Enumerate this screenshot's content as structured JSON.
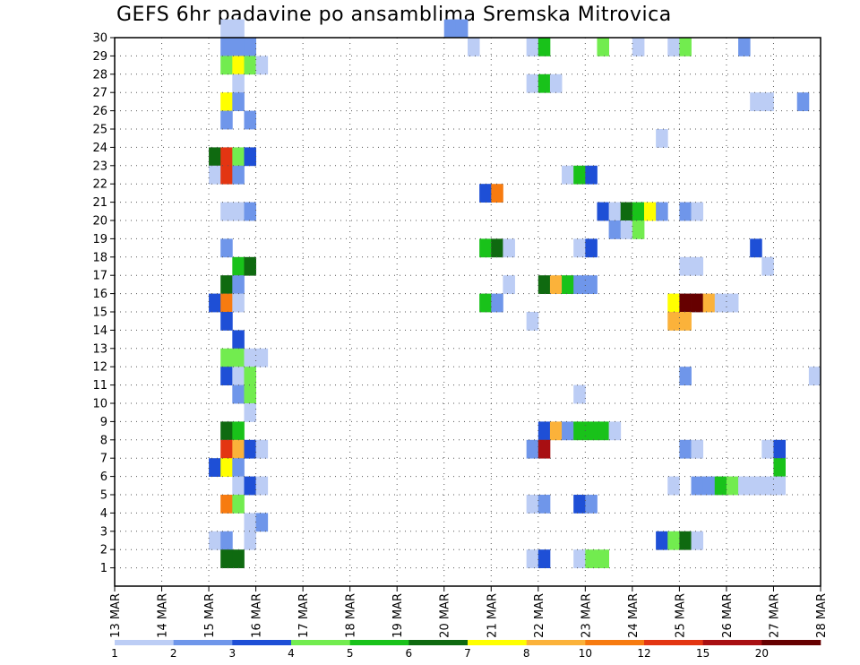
{
  "title": "GEFS 6hr padavine po ansamblima Sremska Mitrovica",
  "chart_data": {
    "type": "heatmap",
    "title": "GEFS 6hr padavine po ansamblima Sremska Mitrovica",
    "x_tick_labels": [
      "13 MAR",
      "14 MAR",
      "15 MAR",
      "16 MAR",
      "17 MAR",
      "18 MAR",
      "19 MAR",
      "20 MAR",
      "21 MAR",
      "22 MAR",
      "23 MAR",
      "24 MAR",
      "25 MAR",
      "26 MAR",
      "27 MAR",
      "28 MAR"
    ],
    "y_tick_labels": [
      "1",
      "2",
      "3",
      "4",
      "5",
      "6",
      "7",
      "8",
      "9",
      "10",
      "11",
      "12",
      "13",
      "14",
      "15",
      "16",
      "17",
      "18",
      "19",
      "20",
      "21",
      "22",
      "23",
      "24",
      "25",
      "26",
      "27",
      "28",
      "29",
      "30"
    ],
    "x_range": [
      "13 MAR",
      "28 MAR"
    ],
    "time_step": "6hr",
    "members_range": [
      0,
      30
    ],
    "grid": "dotted",
    "legend": {
      "position": "bottom",
      "colors": [
        "#bccdf5",
        "#6f96ea",
        "#1e4fd6",
        "#72ec4f",
        "#19c21a",
        "#0f6a10",
        "#ffff00",
        "#fbb23a",
        "#f77b10",
        "#e33512",
        "#a80f12",
        "#660000"
      ],
      "labels": [
        "1",
        "2",
        "3",
        "4",
        "5",
        "6",
        "7",
        "8",
        "10",
        "12",
        "15",
        "20"
      ]
    },
    "cells": [
      {
        "member": 30,
        "day": "15 MAR",
        "slot": 1,
        "level": 1
      },
      {
        "member": 30,
        "day": "15 MAR",
        "slot": 2,
        "level": 1
      },
      {
        "member": 30,
        "day": "20 MAR",
        "slot": 0,
        "level": 2
      },
      {
        "member": 30,
        "day": "20 MAR",
        "slot": 1,
        "level": 2
      },
      {
        "member": 29,
        "day": "15 MAR",
        "slot": 1,
        "level": 2
      },
      {
        "member": 29,
        "day": "15 MAR",
        "slot": 2,
        "level": 2
      },
      {
        "member": 29,
        "day": "15 MAR",
        "slot": 3,
        "level": 2
      },
      {
        "member": 29,
        "day": "20 MAR",
        "slot": 2,
        "level": 1
      },
      {
        "member": 29,
        "day": "21 MAR",
        "slot": 3,
        "level": 1
      },
      {
        "member": 29,
        "day": "22 MAR",
        "slot": 0,
        "level": 5
      },
      {
        "member": 29,
        "day": "23 MAR",
        "slot": 1,
        "level": 4
      },
      {
        "member": 29,
        "day": "24 MAR",
        "slot": 0,
        "level": 1
      },
      {
        "member": 29,
        "day": "24 MAR",
        "slot": 3,
        "level": 1
      },
      {
        "member": 29,
        "day": "25 MAR",
        "slot": 0,
        "level": 4
      },
      {
        "member": 29,
        "day": "26 MAR",
        "slot": 1,
        "level": 2
      },
      {
        "member": 28,
        "day": "15 MAR",
        "slot": 1,
        "level": 4
      },
      {
        "member": 28,
        "day": "15 MAR",
        "slot": 2,
        "level": 7
      },
      {
        "member": 28,
        "day": "15 MAR",
        "slot": 3,
        "level": 4
      },
      {
        "member": 28,
        "day": "16 MAR",
        "slot": 0,
        "level": 1
      },
      {
        "member": 27,
        "day": "15 MAR",
        "slot": 2,
        "level": 1
      },
      {
        "member": 27,
        "day": "21 MAR",
        "slot": 3,
        "level": 1
      },
      {
        "member": 27,
        "day": "22 MAR",
        "slot": 0,
        "level": 5
      },
      {
        "member": 27,
        "day": "22 MAR",
        "slot": 1,
        "level": 1
      },
      {
        "member": 26,
        "day": "15 MAR",
        "slot": 1,
        "level": 7
      },
      {
        "member": 26,
        "day": "15 MAR",
        "slot": 2,
        "level": 2
      },
      {
        "member": 26,
        "day": "26 MAR",
        "slot": 2,
        "level": 1
      },
      {
        "member": 26,
        "day": "26 MAR",
        "slot": 3,
        "level": 1
      },
      {
        "member": 26,
        "day": "27 MAR",
        "slot": 2,
        "level": 2
      },
      {
        "member": 25,
        "day": "15 MAR",
        "slot": 1,
        "level": 2
      },
      {
        "member": 25,
        "day": "15 MAR",
        "slot": 3,
        "level": 2
      },
      {
        "member": 24,
        "day": "24 MAR",
        "slot": 2,
        "level": 1
      },
      {
        "member": 23,
        "day": "15 MAR",
        "slot": 0,
        "level": 6
      },
      {
        "member": 23,
        "day": "15 MAR",
        "slot": 1,
        "level": 10
      },
      {
        "member": 23,
        "day": "15 MAR",
        "slot": 2,
        "level": 4
      },
      {
        "member": 23,
        "day": "15 MAR",
        "slot": 3,
        "level": 3
      },
      {
        "member": 22,
        "day": "15 MAR",
        "slot": 0,
        "level": 1
      },
      {
        "member": 22,
        "day": "15 MAR",
        "slot": 1,
        "level": 10
      },
      {
        "member": 22,
        "day": "15 MAR",
        "slot": 2,
        "level": 2
      },
      {
        "member": 22,
        "day": "22 MAR",
        "slot": 2,
        "level": 1
      },
      {
        "member": 22,
        "day": "22 MAR",
        "slot": 3,
        "level": 5
      },
      {
        "member": 22,
        "day": "23 MAR",
        "slot": 0,
        "level": 3
      },
      {
        "member": 21,
        "day": "20 MAR",
        "slot": 3,
        "level": 3
      },
      {
        "member": 21,
        "day": "21 MAR",
        "slot": 0,
        "level": 9
      },
      {
        "member": 20,
        "day": "15 MAR",
        "slot": 1,
        "level": 1
      },
      {
        "member": 20,
        "day": "15 MAR",
        "slot": 2,
        "level": 1
      },
      {
        "member": 20,
        "day": "15 MAR",
        "slot": 3,
        "level": 2
      },
      {
        "member": 20,
        "day": "23 MAR",
        "slot": 1,
        "level": 3
      },
      {
        "member": 20,
        "day": "23 MAR",
        "slot": 2,
        "level": 1
      },
      {
        "member": 20,
        "day": "23 MAR",
        "slot": 3,
        "level": 6
      },
      {
        "member": 20,
        "day": "24 MAR",
        "slot": 0,
        "level": 5
      },
      {
        "member": 20,
        "day": "24 MAR",
        "slot": 1,
        "level": 7
      },
      {
        "member": 20,
        "day": "24 MAR",
        "slot": 2,
        "level": 2
      },
      {
        "member": 20,
        "day": "25 MAR",
        "slot": 0,
        "level": 2
      },
      {
        "member": 20,
        "day": "25 MAR",
        "slot": 1,
        "level": 1
      },
      {
        "member": 19,
        "day": "23 MAR",
        "slot": 2,
        "level": 2
      },
      {
        "member": 19,
        "day": "23 MAR",
        "slot": 3,
        "level": 1
      },
      {
        "member": 19,
        "day": "24 MAR",
        "slot": 0,
        "level": 4
      },
      {
        "member": 18,
        "day": "15 MAR",
        "slot": 1,
        "level": 2
      },
      {
        "member": 18,
        "day": "20 MAR",
        "slot": 3,
        "level": 5
      },
      {
        "member": 18,
        "day": "21 MAR",
        "slot": 0,
        "level": 6
      },
      {
        "member": 18,
        "day": "21 MAR",
        "slot": 1,
        "level": 1
      },
      {
        "member": 18,
        "day": "22 MAR",
        "slot": 3,
        "level": 1
      },
      {
        "member": 18,
        "day": "23 MAR",
        "slot": 0,
        "level": 3
      },
      {
        "member": 18,
        "day": "26 MAR",
        "slot": 2,
        "level": 3
      },
      {
        "member": 17,
        "day": "15 MAR",
        "slot": 2,
        "level": 5
      },
      {
        "member": 17,
        "day": "15 MAR",
        "slot": 3,
        "level": 6
      },
      {
        "member": 17,
        "day": "25 MAR",
        "slot": 0,
        "level": 1
      },
      {
        "member": 17,
        "day": "25 MAR",
        "slot": 1,
        "level": 1
      },
      {
        "member": 17,
        "day": "26 MAR",
        "slot": 3,
        "level": 1
      },
      {
        "member": 16,
        "day": "15 MAR",
        "slot": 1,
        "level": 6
      },
      {
        "member": 16,
        "day": "15 MAR",
        "slot": 2,
        "level": 2
      },
      {
        "member": 16,
        "day": "21 MAR",
        "slot": 1,
        "level": 1
      },
      {
        "member": 16,
        "day": "22 MAR",
        "slot": 0,
        "level": 6
      },
      {
        "member": 16,
        "day": "22 MAR",
        "slot": 1,
        "level": 8
      },
      {
        "member": 16,
        "day": "22 MAR",
        "slot": 2,
        "level": 5
      },
      {
        "member": 16,
        "day": "22 MAR",
        "slot": 3,
        "level": 2
      },
      {
        "member": 16,
        "day": "23 MAR",
        "slot": 0,
        "level": 2
      },
      {
        "member": 15,
        "day": "15 MAR",
        "slot": 0,
        "level": 3
      },
      {
        "member": 15,
        "day": "15 MAR",
        "slot": 1,
        "level": 9
      },
      {
        "member": 15,
        "day": "15 MAR",
        "slot": 2,
        "level": 1
      },
      {
        "member": 15,
        "day": "20 MAR",
        "slot": 3,
        "level": 5
      },
      {
        "member": 15,
        "day": "21 MAR",
        "slot": 0,
        "level": 2
      },
      {
        "member": 15,
        "day": "24 MAR",
        "slot": 3,
        "level": 7
      },
      {
        "member": 15,
        "day": "25 MAR",
        "slot": 0,
        "level": 12
      },
      {
        "member": 15,
        "day": "25 MAR",
        "slot": 1,
        "level": 12
      },
      {
        "member": 15,
        "day": "25 MAR",
        "slot": 2,
        "level": 8
      },
      {
        "member": 15,
        "day": "25 MAR",
        "slot": 3,
        "level": 1
      },
      {
        "member": 15,
        "day": "26 MAR",
        "slot": 0,
        "level": 1
      },
      {
        "member": 14,
        "day": "15 MAR",
        "slot": 1,
        "level": 3
      },
      {
        "member": 14,
        "day": "21 MAR",
        "slot": 3,
        "level": 1
      },
      {
        "member": 14,
        "day": "24 MAR",
        "slot": 3,
        "level": 8
      },
      {
        "member": 14,
        "day": "25 MAR",
        "slot": 0,
        "level": 8
      },
      {
        "member": 13,
        "day": "15 MAR",
        "slot": 2,
        "level": 3
      },
      {
        "member": 12,
        "day": "15 MAR",
        "slot": 1,
        "level": 4
      },
      {
        "member": 12,
        "day": "15 MAR",
        "slot": 2,
        "level": 4
      },
      {
        "member": 12,
        "day": "15 MAR",
        "slot": 3,
        "level": 1
      },
      {
        "member": 12,
        "day": "16 MAR",
        "slot": 0,
        "level": 1
      },
      {
        "member": 11,
        "day": "15 MAR",
        "slot": 1,
        "level": 3
      },
      {
        "member": 11,
        "day": "15 MAR",
        "slot": 2,
        "level": 1
      },
      {
        "member": 11,
        "day": "15 MAR",
        "slot": 3,
        "level": 4
      },
      {
        "member": 11,
        "day": "25 MAR",
        "slot": 0,
        "level": 2
      },
      {
        "member": 11,
        "day": "27 MAR",
        "slot": 3,
        "level": 1
      },
      {
        "member": 10,
        "day": "15 MAR",
        "slot": 2,
        "level": 2
      },
      {
        "member": 10,
        "day": "15 MAR",
        "slot": 3,
        "level": 4
      },
      {
        "member": 10,
        "day": "22 MAR",
        "slot": 3,
        "level": 1
      },
      {
        "member": 9,
        "day": "15 MAR",
        "slot": 3,
        "level": 1
      },
      {
        "member": 8,
        "day": "15 MAR",
        "slot": 1,
        "level": 6
      },
      {
        "member": 8,
        "day": "15 MAR",
        "slot": 2,
        "level": 5
      },
      {
        "member": 8,
        "day": "22 MAR",
        "slot": 0,
        "level": 3
      },
      {
        "member": 8,
        "day": "22 MAR",
        "slot": 1,
        "level": 8
      },
      {
        "member": 8,
        "day": "22 MAR",
        "slot": 2,
        "level": 2
      },
      {
        "member": 8,
        "day": "22 MAR",
        "slot": 3,
        "level": 5
      },
      {
        "member": 8,
        "day": "23 MAR",
        "slot": 0,
        "level": 5
      },
      {
        "member": 8,
        "day": "23 MAR",
        "slot": 1,
        "level": 5
      },
      {
        "member": 8,
        "day": "23 MAR",
        "slot": 2,
        "level": 1
      },
      {
        "member": 7,
        "day": "15 MAR",
        "slot": 1,
        "level": 10
      },
      {
        "member": 7,
        "day": "15 MAR",
        "slot": 2,
        "level": 8
      },
      {
        "member": 7,
        "day": "15 MAR",
        "slot": 3,
        "level": 3
      },
      {
        "member": 7,
        "day": "16 MAR",
        "slot": 0,
        "level": 1
      },
      {
        "member": 7,
        "day": "21 MAR",
        "slot": 3,
        "level": 2
      },
      {
        "member": 7,
        "day": "22 MAR",
        "slot": 0,
        "level": 11
      },
      {
        "member": 7,
        "day": "25 MAR",
        "slot": 0,
        "level": 2
      },
      {
        "member": 7,
        "day": "25 MAR",
        "slot": 1,
        "level": 1
      },
      {
        "member": 7,
        "day": "26 MAR",
        "slot": 3,
        "level": 1
      },
      {
        "member": 7,
        "day": "27 MAR",
        "slot": 0,
        "level": 3
      },
      {
        "member": 6,
        "day": "15 MAR",
        "slot": 0,
        "level": 3
      },
      {
        "member": 6,
        "day": "15 MAR",
        "slot": 1,
        "level": 7
      },
      {
        "member": 6,
        "day": "15 MAR",
        "slot": 2,
        "level": 2
      },
      {
        "member": 6,
        "day": "27 MAR",
        "slot": 0,
        "level": 5
      },
      {
        "member": 5,
        "day": "15 MAR",
        "slot": 2,
        "level": 1
      },
      {
        "member": 5,
        "day": "15 MAR",
        "slot": 3,
        "level": 3
      },
      {
        "member": 5,
        "day": "16 MAR",
        "slot": 0,
        "level": 1
      },
      {
        "member": 5,
        "day": "24 MAR",
        "slot": 3,
        "level": 1
      },
      {
        "member": 5,
        "day": "25 MAR",
        "slot": 1,
        "level": 2
      },
      {
        "member": 5,
        "day": "25 MAR",
        "slot": 2,
        "level": 2
      },
      {
        "member": 5,
        "day": "25 MAR",
        "slot": 3,
        "level": 5
      },
      {
        "member": 5,
        "day": "26 MAR",
        "slot": 0,
        "level": 4
      },
      {
        "member": 5,
        "day": "26 MAR",
        "slot": 1,
        "level": 1
      },
      {
        "member": 5,
        "day": "26 MAR",
        "slot": 2,
        "level": 1
      },
      {
        "member": 5,
        "day": "26 MAR",
        "slot": 3,
        "level": 1
      },
      {
        "member": 5,
        "day": "27 MAR",
        "slot": 0,
        "level": 1
      },
      {
        "member": 4,
        "day": "15 MAR",
        "slot": 1,
        "level": 9
      },
      {
        "member": 4,
        "day": "15 MAR",
        "slot": 2,
        "level": 4
      },
      {
        "member": 4,
        "day": "21 MAR",
        "slot": 3,
        "level": 1
      },
      {
        "member": 4,
        "day": "22 MAR",
        "slot": 0,
        "level": 2
      },
      {
        "member": 4,
        "day": "22 MAR",
        "slot": 3,
        "level": 3
      },
      {
        "member": 4,
        "day": "23 MAR",
        "slot": 0,
        "level": 2
      },
      {
        "member": 3,
        "day": "15 MAR",
        "slot": 3,
        "level": 1
      },
      {
        "member": 3,
        "day": "16 MAR",
        "slot": 0,
        "level": 2
      },
      {
        "member": 2,
        "day": "15 MAR",
        "slot": 0,
        "level": 1
      },
      {
        "member": 2,
        "day": "15 MAR",
        "slot": 1,
        "level": 2
      },
      {
        "member": 2,
        "day": "15 MAR",
        "slot": 3,
        "level": 1
      },
      {
        "member": 2,
        "day": "24 MAR",
        "slot": 2,
        "level": 3
      },
      {
        "member": 2,
        "day": "24 MAR",
        "slot": 3,
        "level": 4
      },
      {
        "member": 2,
        "day": "25 MAR",
        "slot": 0,
        "level": 6
      },
      {
        "member": 2,
        "day": "25 MAR",
        "slot": 1,
        "level": 1
      },
      {
        "member": 1,
        "day": "15 MAR",
        "slot": 1,
        "level": 6
      },
      {
        "member": 1,
        "day": "15 MAR",
        "slot": 2,
        "level": 6
      },
      {
        "member": 1,
        "day": "21 MAR",
        "slot": 3,
        "level": 1
      },
      {
        "member": 1,
        "day": "22 MAR",
        "slot": 0,
        "level": 3
      },
      {
        "member": 1,
        "day": "22 MAR",
        "slot": 3,
        "level": 1
      },
      {
        "member": 1,
        "day": "23 MAR",
        "slot": 0,
        "level": 4
      },
      {
        "member": 1,
        "day": "23 MAR",
        "slot": 1,
        "level": 4
      }
    ]
  }
}
